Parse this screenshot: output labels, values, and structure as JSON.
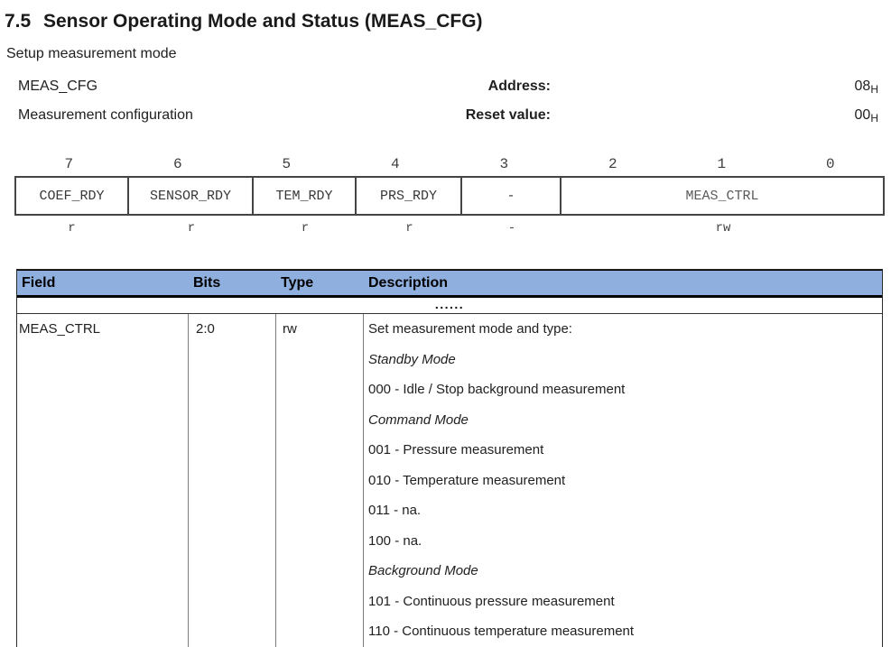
{
  "header": {
    "title_number": "7.5",
    "title_text": "Sensor Operating Mode and Status (MEAS_CFG)",
    "subtitle": "Setup measurement mode"
  },
  "meta": {
    "rows": [
      {
        "left": "MEAS_CFG",
        "label": "Address:",
        "value": "08",
        "value_sub": "H"
      },
      {
        "left": "Measurement configuration",
        "label": "Reset value:",
        "value": "00",
        "value_sub": "H"
      }
    ]
  },
  "register_diagram": {
    "bit_numbers": [
      "7",
      "6",
      "5",
      "4",
      "3",
      "2",
      "1",
      "0"
    ],
    "cells": [
      {
        "label": "COEF_RDY",
        "access": "r"
      },
      {
        "label": "SENSOR_RDY",
        "access": "r"
      },
      {
        "label": "TEM_RDY",
        "access": "r"
      },
      {
        "label": "PRS_RDY",
        "access": "r"
      },
      {
        "label": "-",
        "access": "-"
      },
      {
        "label": "MEAS_CTRL",
        "access": "rw"
      }
    ]
  },
  "field_table": {
    "headers": [
      "Field",
      "Bits",
      "Type",
      "Description"
    ],
    "ellipsis_row": "......",
    "rows": [
      {
        "field": "MEAS_CTRL",
        "bits": "2:0",
        "type": "rw",
        "description": [
          {
            "text": "Set measurement mode and type:",
            "style": "normal"
          },
          {
            "text": "Standby Mode",
            "style": "italic"
          },
          {
            "text": "000 - Idle / Stop background measurement",
            "style": "normal"
          },
          {
            "text": "Command Mode",
            "style": "italic"
          },
          {
            "text": "001 - Pressure measurement",
            "style": "normal"
          },
          {
            "text": "010 - Temperature measurement",
            "style": "normal"
          },
          {
            "text": "011 - na.",
            "style": "normal"
          },
          {
            "text": "100 - na.",
            "style": "normal"
          },
          {
            "text": "Background Mode",
            "style": "italic"
          },
          {
            "text": "101 - Continuous pressure measurement",
            "style": "normal"
          },
          {
            "text": "110 - Continuous temperature measurement",
            "style": "normal"
          }
        ]
      }
    ]
  },
  "colors": {
    "table_header_bg": "#8FAFDE",
    "text": "#212121",
    "border_dark": "#454545",
    "border_gray": "#7d7d7d"
  }
}
